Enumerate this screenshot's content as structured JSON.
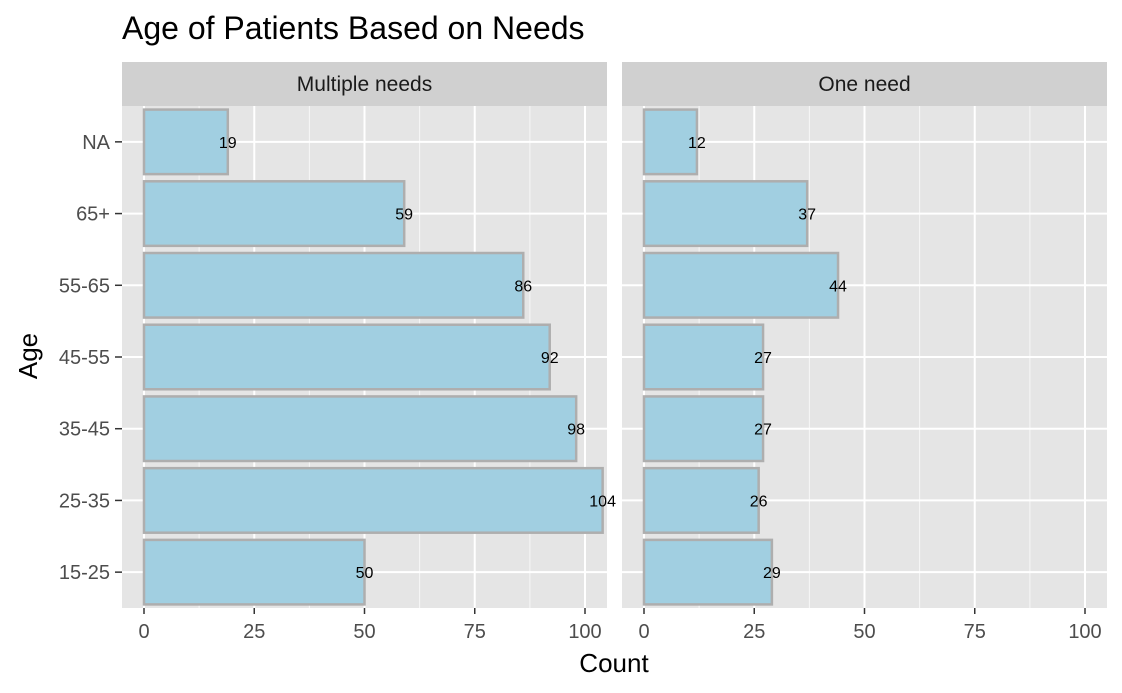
{
  "chart_data": {
    "type": "bar",
    "orientation": "horizontal",
    "title": "Age of Patients Based on Needs",
    "xlabel": "Count",
    "ylabel": "Age",
    "categories": [
      "15-25",
      "25-35",
      "35-45",
      "45-55",
      "55-65",
      "65+",
      "NA"
    ],
    "xlim": [
      0,
      110
    ],
    "xticks": [
      0,
      25,
      50,
      75,
      100
    ],
    "grid": true,
    "legend": "none",
    "colors": {
      "bar_fill": "#a1cfe1",
      "bar_stroke": "#aeaeae",
      "panel_bg": "#e5e5e5",
      "strip_bg": "#d0d0d0",
      "grid": "#ffffff"
    },
    "facets": [
      {
        "label": "Multiple needs",
        "values": [
          50,
          104,
          98,
          92,
          86,
          59,
          19
        ]
      },
      {
        "label": "One need",
        "values": [
          29,
          26,
          27,
          27,
          44,
          37,
          12
        ]
      }
    ]
  }
}
